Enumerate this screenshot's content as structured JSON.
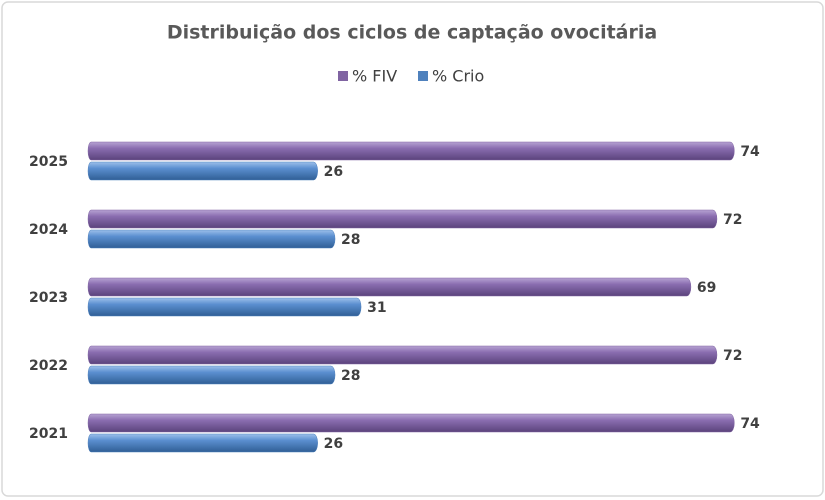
{
  "chart_data": {
    "type": "bar",
    "orientation": "horizontal",
    "title": "Distribuição dos ciclos de captação ovocitária",
    "categories": [
      "2025",
      "2024",
      "2023",
      "2022",
      "2021"
    ],
    "series": [
      {
        "name": "% FIV",
        "color": "#8064a2",
        "values": [
          74,
          72,
          69,
          72,
          74
        ]
      },
      {
        "name": "% Crio",
        "color": "#4f81bd",
        "values": [
          26,
          28,
          31,
          28,
          26
        ]
      }
    ],
    "legend": "top"
  }
}
